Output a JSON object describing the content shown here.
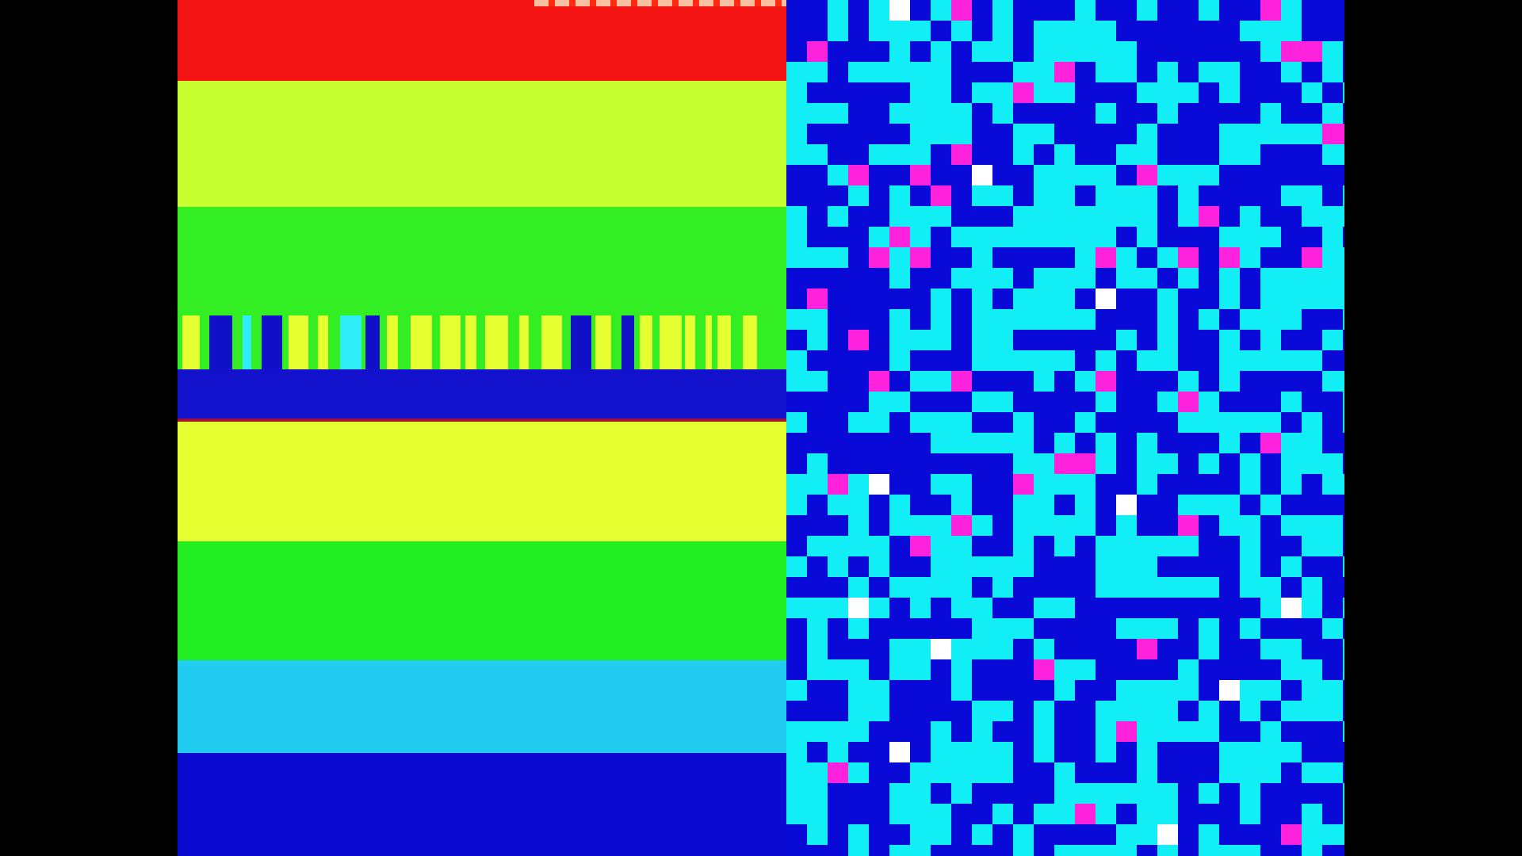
{
  "colors": {
    "background": "#000000",
    "band_red": "#f51414",
    "band_yellow_green": "#c8ff30",
    "band_green": "#33ee22",
    "band_blue_upper": "#1212cc",
    "band_red_line": "#a01030",
    "band_yellow": "#e6ff30",
    "band_green_lower": "#22ee22",
    "band_light_blue": "#22ccf0",
    "band_blue_lower": "#0a0ad0",
    "grid_blue": "#0a0ad8",
    "grid_cyan": "#11eef5",
    "grid_magenta": "#ff22dd",
    "grid_white": "#ffffff",
    "stripe_yellow": "#e6ff30",
    "stripe_blue": "#1010c8",
    "stripe_red": "#f01010",
    "stripe_cyan": "#30eef8"
  }
}
